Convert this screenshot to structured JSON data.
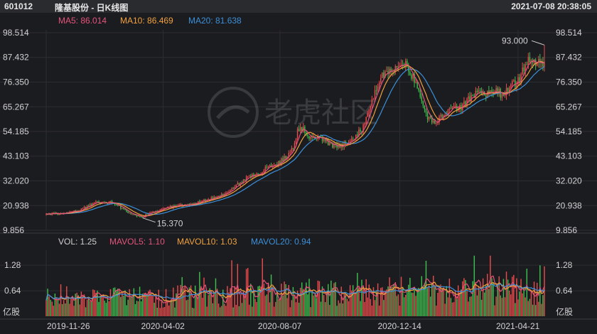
{
  "header": {
    "code": "601012",
    "name": "隆基股份 - 日K线图",
    "datetime": "2021-07-08 20:38:05"
  },
  "price_legend": [
    {
      "label": "MA5: 86.014",
      "color": "#e5537a"
    },
    {
      "label": "MA10: 86.469",
      "color": "#f2a13c"
    },
    {
      "label": "MA20: 81.638",
      "color": "#3c8fd8"
    }
  ],
  "volume_legend": [
    {
      "label": "VOL: 1.25",
      "color": "#cfcfcf"
    },
    {
      "label": "MAVOL5: 1.10",
      "color": "#e5537a"
    },
    {
      "label": "MAVOL10: 1.03",
      "color": "#f2a13c"
    },
    {
      "label": "MAVOL20: 0.94",
      "color": "#3c8fd8"
    }
  ],
  "watermark": "老虎社区",
  "colors": {
    "up": "#e84b4b",
    "down": "#3fbd4f",
    "ma5": "#e5537a",
    "ma10": "#f2a13c",
    "ma20": "#3c8fd8"
  },
  "chart_data": {
    "type": "candlestick",
    "price_axis": {
      "ticks": [
        "98.514",
        "87.432",
        "76.350",
        "65.267",
        "54.185",
        "43.103",
        "32.020",
        "20.938",
        "9.856"
      ],
      "range": [
        9.856,
        98.514
      ]
    },
    "volume_axis": {
      "ticks": [
        "1.28",
        "0.64"
      ],
      "unit": "亿股",
      "range": [
        0,
        1.55
      ]
    },
    "x_ticks": [
      "2019-11-26",
      "2020-04-02",
      "2020-08-07",
      "2020-12-14",
      "2021-04-21"
    ],
    "annotations": [
      {
        "label": "93.000",
        "type": "max",
        "value": 93.0
      },
      {
        "label": "15.370",
        "type": "min",
        "value": 15.37
      }
    ],
    "price_path": [
      [
        0,
        16.8
      ],
      [
        9,
        17.5
      ],
      [
        14,
        17.8
      ],
      [
        20,
        18.5
      ],
      [
        25,
        19.5
      ],
      [
        30,
        21.0
      ],
      [
        35,
        22.5
      ],
      [
        40,
        22.0
      ],
      [
        45,
        22.5
      ],
      [
        50,
        20.5
      ],
      [
        55,
        18.0
      ],
      [
        60,
        16.5
      ],
      [
        66,
        15.8
      ],
      [
        72,
        17.8
      ],
      [
        80,
        19.5
      ],
      [
        90,
        21.0
      ],
      [
        100,
        21.5
      ],
      [
        110,
        23.5
      ],
      [
        120,
        25.5
      ],
      [
        130,
        30.0
      ],
      [
        138,
        34.0
      ],
      [
        145,
        35.0
      ],
      [
        150,
        38.0
      ],
      [
        158,
        39.5
      ],
      [
        165,
        43.0
      ],
      [
        170,
        48.0
      ],
      [
        172,
        54.5
      ],
      [
        176,
        56.0
      ],
      [
        180,
        52.0
      ],
      [
        187,
        51.0
      ],
      [
        193,
        49.0
      ],
      [
        200,
        47.0
      ],
      [
        205,
        49.0
      ],
      [
        211,
        52.0
      ],
      [
        217,
        56.0
      ],
      [
        223,
        68.0
      ],
      [
        229,
        78.0
      ],
      [
        235,
        82.0
      ],
      [
        241,
        83.0
      ],
      [
        244,
        86.0
      ],
      [
        247,
        84.0
      ],
      [
        250,
        80.0
      ],
      [
        254,
        74.0
      ],
      [
        258,
        65.0
      ],
      [
        262,
        60.0
      ],
      [
        266,
        57.0
      ],
      [
        270,
        61.0
      ],
      [
        276,
        64.0
      ],
      [
        282,
        64.0
      ],
      [
        288,
        68.0
      ],
      [
        294,
        72.0
      ],
      [
        300,
        70.0
      ],
      [
        306,
        72.0
      ],
      [
        312,
        71.0
      ],
      [
        318,
        74.0
      ],
      [
        324,
        78.0
      ],
      [
        330,
        87.0
      ],
      [
        336,
        84.0
      ],
      [
        341,
        86.0
      ]
    ],
    "series": [
      {
        "name": "MA5",
        "last": 86.014
      },
      {
        "name": "MA10",
        "last": 86.469
      },
      {
        "name": "MA20",
        "last": 81.638
      },
      {
        "name": "VOL",
        "last": 1.25
      },
      {
        "name": "MAVOL5",
        "last": 1.1
      },
      {
        "name": "MAVOL10",
        "last": 1.03
      },
      {
        "name": "MAVOL20",
        "last": 0.94
      }
    ]
  }
}
